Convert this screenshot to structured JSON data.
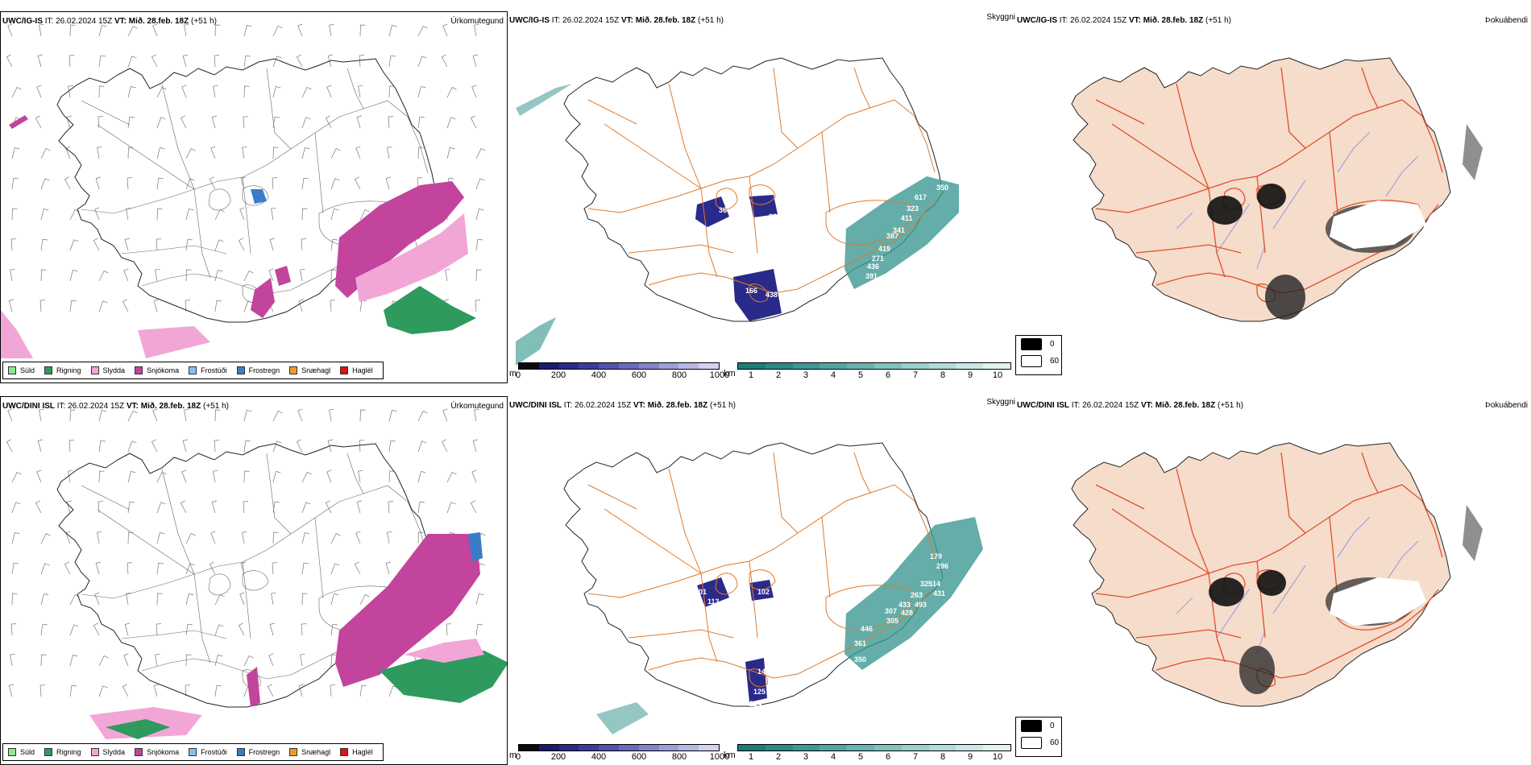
{
  "rows": [
    {
      "model": "UWC/IG-IS",
      "issue_label": "IT:",
      "issue": "26.02.2024 15Z",
      "valid_label": "VT:",
      "valid": "Mið. 28.feb. 18Z",
      "lead": "(+51 h)",
      "ceiling_labels": [
        "36",
        "88",
        "12",
        "166",
        "438",
        "98",
        "617",
        "323",
        "411",
        "341",
        "387",
        "419",
        "271",
        "436",
        "391",
        "350"
      ],
      "ceiling_label_prefix": "30"
    },
    {
      "model": "UWC/DINI ISL",
      "issue_label": "IT:",
      "issue": "26.02.2024 15Z",
      "valid_label": "VT:",
      "valid": "Mið. 28.feb. 18Z",
      "lead": "(+51 h)",
      "ceiling_labels": [
        "101",
        "102",
        "113",
        "145",
        "125",
        "224",
        "10",
        "179",
        "296",
        "325",
        "514",
        "431",
        "263",
        "493",
        "433",
        "428",
        "307",
        "305",
        "446",
        "361",
        "350"
      ]
    }
  ],
  "panels": {
    "precip_type_title": "Úrkomutegund",
    "visibility_title": "Skyggni",
    "fog_title": "Þokuábendi"
  },
  "precip_legend": [
    {
      "label": "Súld",
      "color": "#8ee88e"
    },
    {
      "label": "Rigning",
      "color": "#2e9a5e"
    },
    {
      "label": "Slydda",
      "color": "#f2a6d6"
    },
    {
      "label": "Snjókoma",
      "color": "#c2449c"
    },
    {
      "label": "Frostúði",
      "color": "#88bff0"
    },
    {
      "label": "Frostregn",
      "color": "#3a7cc8"
    },
    {
      "label": "Snæhagl",
      "color": "#f09a2a"
    },
    {
      "label": "Haglél",
      "color": "#e01010"
    }
  ],
  "ceiling_colorbar": {
    "unit": "m",
    "ticks": [
      "0",
      "200",
      "400",
      "600",
      "800",
      "1000"
    ],
    "colors": [
      "#0a0a14",
      "#1a1a6e",
      "#2a2a8a",
      "#3c3ca0",
      "#5252b0",
      "#6a6abe",
      "#8484cc",
      "#9e9ed8",
      "#b8b8e4",
      "#d2d2ee"
    ]
  },
  "visibility_colorbar": {
    "unit": "km",
    "ticks": [
      "1",
      "2",
      "3",
      "4",
      "5",
      "6",
      "7",
      "8",
      "9",
      "10"
    ],
    "colors": [
      "#1e7c78",
      "#2e8a86",
      "#3e9894",
      "#52a6a2",
      "#68b4b0",
      "#80c2be",
      "#98d0cc",
      "#b0dcda",
      "#c8e8e6",
      "#e2f4f2"
    ]
  },
  "fog_legend": [
    {
      "label": "0",
      "color": "#000000"
    },
    {
      "label": "60",
      "color": "#ffffff"
    }
  ],
  "colors": {
    "land_fog": "#f5dccb",
    "roads": "#e07a2a",
    "roads_fog": "#e0502a",
    "rivers": "#7080e8",
    "coast": "#222222",
    "snow": "#c2449c",
    "rain": "#2e9a5e",
    "sleet": "#f2a6d6",
    "teal": "#3d9993",
    "navy": "#2a2a8a"
  }
}
